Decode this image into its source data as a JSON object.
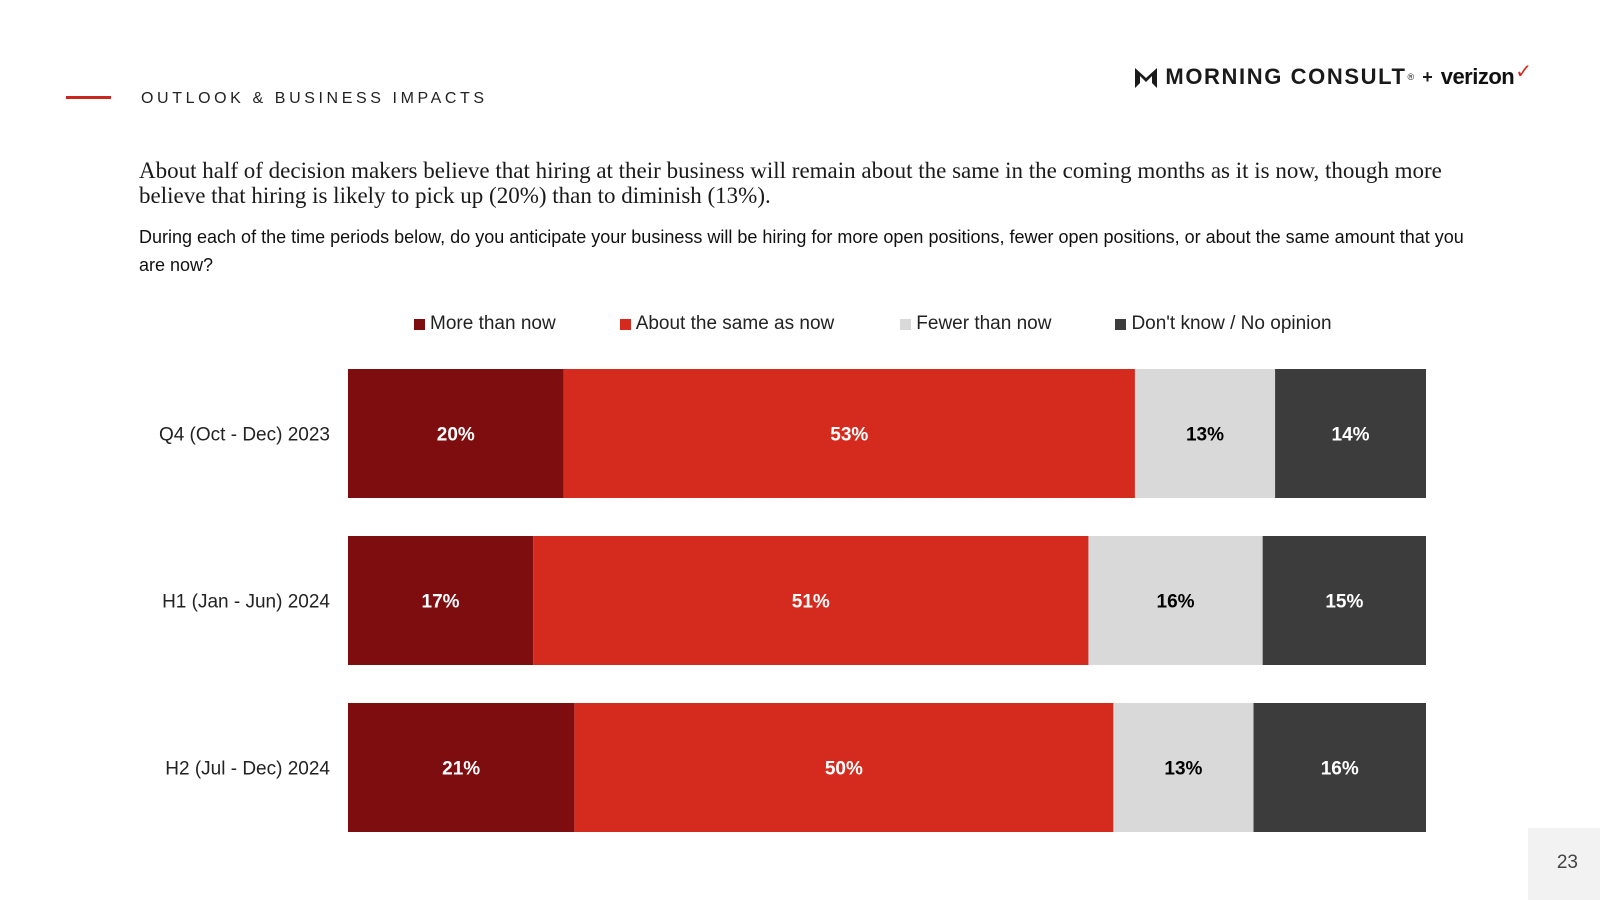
{
  "header": {
    "section_title": "OUTLOOK & BUSINESS IMPACTS",
    "logo_brand": "MORNING CONSULT",
    "logo_tm": "®",
    "logo_plus": "+",
    "logo_partner": "verizon",
    "logo_check": "✓"
  },
  "headline": "About half of decision makers believe that hiring at their business will remain about the same in the coming months as it is now, though more believe that hiring is likely to pick up (20%) than to diminish (13%).",
  "question": "During each of the time periods below, do you anticipate your business will be hiring for more open positions, fewer open positions, or about the same amount that you are now?",
  "page_number": "23",
  "colors": {
    "more": "#7e0d10",
    "same": "#d52b1e",
    "fewer": "#d9d9d9",
    "dont_know": "#3c3c3c",
    "accent": "#c8281e"
  },
  "chart_data": {
    "type": "bar",
    "orientation": "horizontal",
    "stacked": true,
    "normalized": true,
    "categories": [
      "Q4 (Oct - Dec) 2023",
      "H1 (Jan - Jun) 2024",
      "H2 (Jul - Dec) 2024"
    ],
    "series": [
      {
        "name": "More than now",
        "values": [
          20,
          17,
          21
        ],
        "labels": [
          "20%",
          "17%",
          "21%"
        ],
        "color": "#7e0d10",
        "label_color": "#ffffff"
      },
      {
        "name": "About the same as now",
        "values": [
          53,
          51,
          50
        ],
        "labels": [
          "53%",
          "51%",
          "50%"
        ],
        "color": "#d52b1e",
        "label_color": "#ffffff"
      },
      {
        "name": "Fewer than now",
        "values": [
          13,
          16,
          13
        ],
        "labels": [
          "13%",
          "16%",
          "13%"
        ],
        "color": "#d9d9d9",
        "label_color": "#000000"
      },
      {
        "name": "Don't know / No opinion",
        "values": [
          14,
          15,
          16
        ],
        "labels": [
          "14%",
          "15%",
          "16%"
        ],
        "color": "#3c3c3c",
        "label_color": "#ffffff"
      }
    ],
    "legend_position": "top",
    "grid": false
  }
}
